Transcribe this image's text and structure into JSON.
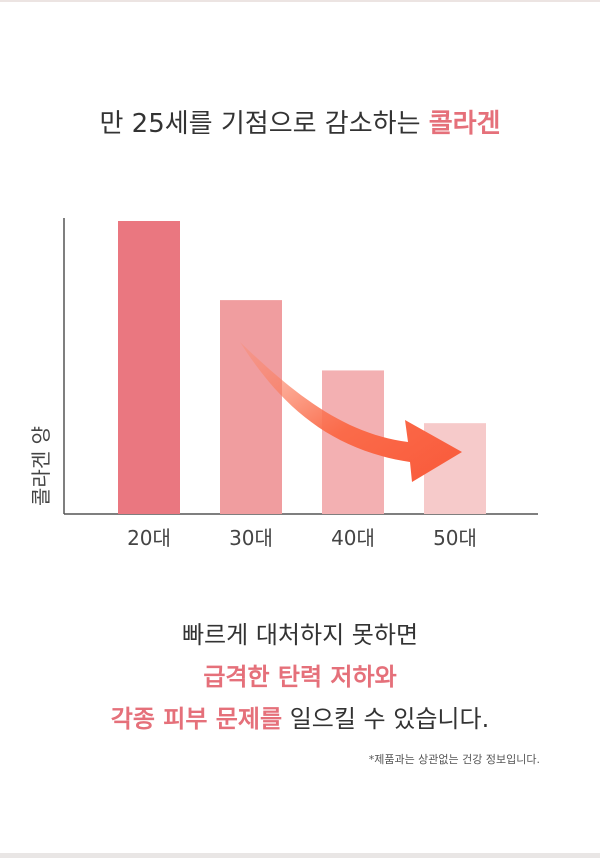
{
  "headline": {
    "prefix": "만 25세를 기점으로 감소하는 ",
    "accent": "콜라겐"
  },
  "chart_data": {
    "type": "bar",
    "title": "",
    "xlabel": "",
    "ylabel": "콜라겐 양",
    "categories": [
      "20대",
      "30대",
      "40대",
      "50대"
    ],
    "values": [
      100,
      73,
      49,
      31
    ],
    "ylim": [
      0,
      100
    ],
    "grid": false,
    "legend": "none",
    "bar_colors": [
      "#ea7780",
      "#f09d9f",
      "#f3b0b2",
      "#f6caca"
    ],
    "axis_color": "#555555",
    "arrow_color": "#fa6b4a"
  },
  "message": {
    "line1": "빠르게 대처하지 못하면",
    "line2": "급격한 탄력 저하와",
    "line3_accent": "각종 피부 문제를",
    "line3_rest": " 일으킬 수 있습니다."
  },
  "footnote": "*제품과는 상관없는 건강 정보입니다.",
  "colors": {
    "accent": "#e5707a",
    "text": "#333333"
  }
}
